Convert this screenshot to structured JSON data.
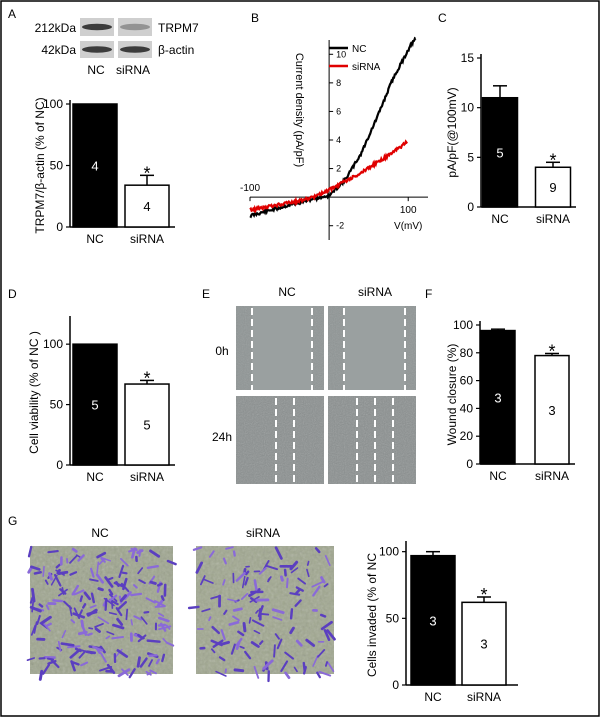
{
  "chart_data": [
    {
      "panel": "A",
      "type": "bar",
      "blot": {
        "rows": [
          {
            "kda": "212kDa",
            "protein": "TRPM7",
            "band_intensity": [
              0.85,
              0.35
            ]
          },
          {
            "kda": "42kDa",
            "protein": "β-actin",
            "band_intensity": [
              0.85,
              0.85
            ]
          }
        ],
        "lanes": [
          "NC",
          "siRNA"
        ]
      },
      "categories": [
        "NC",
        "siRNA"
      ],
      "values": [
        100,
        34
      ],
      "errors": [
        0,
        8
      ],
      "n": [
        "4",
        "4"
      ],
      "significance": [
        "",
        "*"
      ],
      "fills": [
        "#000000",
        "#ffffff"
      ],
      "ylabel": "TRPM7/β-actin (% of NC)",
      "yticks": [
        0,
        50,
        100
      ],
      "ylim": [
        0,
        100
      ]
    },
    {
      "panel": "B",
      "type": "line",
      "xlabel": "V(mV)",
      "ylabel": "Current density (pA/pF)",
      "xticks": [
        -100,
        100
      ],
      "yticks": [
        -2,
        2,
        4,
        6,
        8,
        10
      ],
      "xlim": [
        -100,
        125
      ],
      "ylim": [
        -3,
        11
      ],
      "legend_position": "top-right",
      "series": [
        {
          "name": "NC",
          "color": "#000000",
          "x": [
            -100,
            -80,
            -60,
            -40,
            -20,
            0,
            20,
            40,
            60,
            80,
            100,
            110
          ],
          "y": [
            -1.3,
            -1.0,
            -0.7,
            -0.4,
            -0.1,
            0.1,
            1.2,
            3.0,
            5.5,
            8.2,
            10.3,
            11.2
          ]
        },
        {
          "name": "siRNA",
          "color": "#e00000",
          "x": [
            -100,
            -80,
            -60,
            -40,
            -20,
            0,
            20,
            40,
            60,
            80,
            100
          ],
          "y": [
            -0.9,
            -0.7,
            -0.5,
            -0.3,
            0.0,
            0.5,
            1.1,
            1.7,
            2.4,
            3.1,
            3.9
          ]
        }
      ]
    },
    {
      "panel": "C",
      "type": "bar",
      "categories": [
        "NC",
        "siRNA"
      ],
      "values": [
        11,
        4
      ],
      "errors": [
        1.2,
        0.5
      ],
      "n": [
        "5",
        "9"
      ],
      "significance": [
        "",
        "*"
      ],
      "fills": [
        "#000000",
        "#ffffff"
      ],
      "ylabel": "pA/pF(@100mV)",
      "yticks": [
        0,
        5,
        10,
        15
      ],
      "ylim": [
        0,
        15
      ]
    },
    {
      "panel": "D",
      "type": "bar",
      "categories": [
        "NC",
        "siRNA"
      ],
      "values": [
        100,
        67
      ],
      "errors": [
        0,
        3
      ],
      "n": [
        "5",
        "5"
      ],
      "significance": [
        "",
        "*"
      ],
      "fills": [
        "#000000",
        "#ffffff"
      ],
      "ylabel": "Cell viability (% of NC )",
      "yticks": [
        0,
        50,
        100
      ],
      "ylim": [
        0,
        120
      ]
    },
    {
      "panel": "E",
      "type": "image",
      "columns": [
        "NC",
        "siRNA"
      ],
      "rows": [
        "0h",
        "24h"
      ]
    },
    {
      "panel": "F",
      "type": "bar",
      "categories": [
        "NC",
        "siRNA"
      ],
      "values": [
        96,
        78
      ],
      "errors": [
        1,
        1.5
      ],
      "n": [
        "3",
        "3"
      ],
      "significance": [
        "",
        "*"
      ],
      "fills": [
        "#000000",
        "#ffffff"
      ],
      "ylabel": "Wound closure (%)",
      "yticks": [
        0,
        20,
        40,
        60,
        80,
        100
      ],
      "ylim": [
        0,
        100
      ]
    },
    {
      "panel": "G",
      "type": "bar",
      "images": [
        "NC",
        "siRNA"
      ],
      "categories": [
        "NC",
        "siRNA"
      ],
      "values": [
        97,
        62
      ],
      "errors": [
        3,
        4
      ],
      "n": [
        "3",
        "3"
      ],
      "significance": [
        "",
        "*"
      ],
      "fills": [
        "#000000",
        "#ffffff"
      ],
      "ylabel": "Cells invaded (% of NC",
      "yticks": [
        0,
        50,
        100
      ],
      "ylim": [
        0,
        105
      ]
    }
  ]
}
